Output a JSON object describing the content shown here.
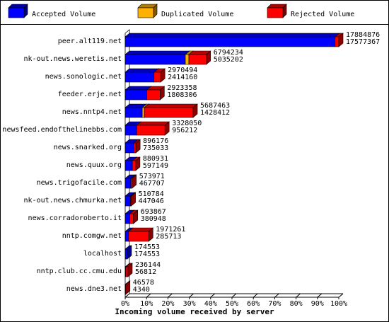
{
  "chart_data": {
    "type": "bar3d_horizontal_stacked",
    "x_label": "Incoming volume received by server",
    "categories": [
      "peer.alt119.net",
      "nk-out.news.weretis.net",
      "news.sonologic.net",
      "feeder.erje.net",
      "news.nntp4.net",
      "newsfeed.endofthelinebbs.com",
      "news.snarked.org",
      "news.quux.org",
      "news.trigofacile.com",
      "nk-out.news.chmurka.net",
      "news.corradoroberto.it",
      "nntp.comgw.net",
      "localhost",
      "nntp.club.cc.cmu.edu",
      "news.dne3.net"
    ],
    "totals": [
      17884876,
      6794234,
      2970494,
      2923358,
      5687463,
      3328050,
      896176,
      880931,
      573971,
      510784,
      693867,
      1971261,
      174553,
      236144,
      46578
    ],
    "series": [
      {
        "name": "Accepted Volume",
        "color": "#0000ff",
        "values": [
          17577367,
          5035202,
          2414160,
          1808306,
          1428412,
          956212,
          735033,
          597149,
          467707,
          447046,
          380948,
          285713,
          174553,
          56812,
          4340
        ]
      },
      {
        "name": "Duplicated Volume",
        "color": "#ffb000",
        "values": [
          0,
          300000,
          0,
          0,
          180000,
          0,
          0,
          0,
          0,
          0,
          0,
          0,
          0,
          0,
          0
        ]
      },
      {
        "name": "Rejected Volume",
        "color": "#ff0000",
        "values": [
          307509,
          1459032,
          556334,
          1115052,
          4079051,
          2371838,
          161143,
          283782,
          106264,
          63738,
          312919,
          1685548,
          0,
          179332,
          42238
        ]
      }
    ],
    "xlim": [
      0,
      17884876
    ],
    "xticks": [
      {
        "value": 0,
        "label": "0%"
      },
      {
        "value": 1788487.6,
        "label": "10%"
      },
      {
        "value": 3576975.2,
        "label": "20%"
      },
      {
        "value": 5365462.8,
        "label": "30%"
      },
      {
        "value": 7153950.4,
        "label": "40%"
      },
      {
        "value": 8942438,
        "label": "50%"
      },
      {
        "value": 10730925.6,
        "label": "60%"
      },
      {
        "value": 12519413.2,
        "label": "70%"
      },
      {
        "value": 14307900.8,
        "label": "80%"
      },
      {
        "value": 16096388.4,
        "label": "90%"
      },
      {
        "value": 17884876,
        "label": "100%"
      }
    ]
  }
}
